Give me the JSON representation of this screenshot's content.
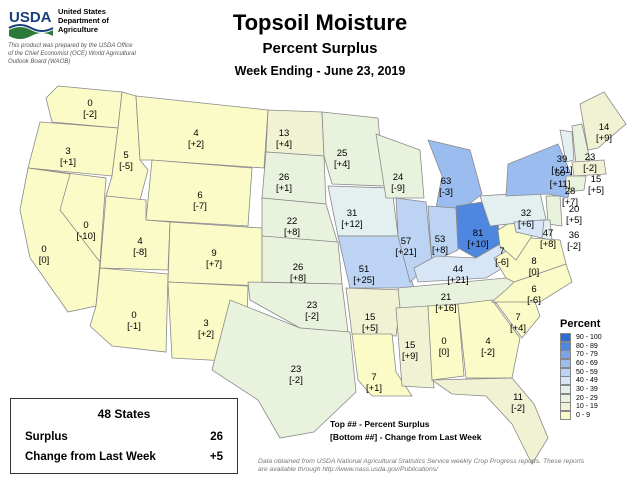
{
  "header": {
    "agency_logo_text": "USDA",
    "agency_name": [
      "United States",
      "Department of",
      "Agriculture"
    ],
    "disclaimer": "This product was prepared by the USDA Office of the Chief Economist (OCE) World Agricultural Outlook Board (WAOB)",
    "title": "Topsoil Moisture",
    "subtitle": "Percent Surplus",
    "week": "Week Ending - June 23, 2019"
  },
  "legend": {
    "title": "Percent",
    "items": [
      {
        "range": "90 - 100",
        "color": "#2b6fd6"
      },
      {
        "range": "80 - 89",
        "color": "#4f87e0"
      },
      {
        "range": "70 - 79",
        "color": "#7aa3e8"
      },
      {
        "range": "60 - 69",
        "color": "#9bbcee"
      },
      {
        "range": "50 - 59",
        "color": "#bcd3f3"
      },
      {
        "range": "40 - 49",
        "color": "#d7e6f7"
      },
      {
        "range": "30 - 39",
        "color": "#e4eff0"
      },
      {
        "range": "20 - 29",
        "color": "#e8f2dc"
      },
      {
        "range": "10 - 19",
        "color": "#f1f2d4"
      },
      {
        "range": "0 - 9",
        "color": "#fbfbc8"
      }
    ]
  },
  "summary": {
    "title": "48 States",
    "surplus_label": "Surplus",
    "surplus_value": "26",
    "change_label": "Change from Last Week",
    "change_value": "+5"
  },
  "key": {
    "top": "Top ## - Percent Surplus",
    "bottom": "[Bottom ##] - Change from Last Week"
  },
  "source": "Data obtained from USDA National Agricultural Statistics Service weekly Crop Progress reports. These reports are available through http://www.nass.usda.gov/Publications/",
  "states": [
    {
      "id": "WA",
      "value": "0",
      "change": "[-2]"
    },
    {
      "id": "OR",
      "value": "3",
      "change": "[+1]"
    },
    {
      "id": "ID",
      "value": "5",
      "change": "[-5]"
    },
    {
      "id": "MT",
      "value": "4",
      "change": "[+2]"
    },
    {
      "id": "WY",
      "value": "6",
      "change": "[-7]"
    },
    {
      "id": "NV",
      "value": "0",
      "change": "[-10]"
    },
    {
      "id": "CA",
      "value": "0",
      "change": "[0]"
    },
    {
      "id": "UT",
      "value": "4",
      "change": "[-8]"
    },
    {
      "id": "CO",
      "value": "9",
      "change": "[+7]"
    },
    {
      "id": "AZ",
      "value": "0",
      "change": "[-1]"
    },
    {
      "id": "NM",
      "value": "3",
      "change": "[+2]"
    },
    {
      "id": "ND",
      "value": "13",
      "change": "[+4]"
    },
    {
      "id": "SD",
      "value": "26",
      "change": "[+1]"
    },
    {
      "id": "NE",
      "value": "22",
      "change": "[+8]"
    },
    {
      "id": "KS",
      "value": "26",
      "change": "[+8]"
    },
    {
      "id": "OK",
      "value": "23",
      "change": "[-2]"
    },
    {
      "id": "TX",
      "value": "23",
      "change": "[-2]"
    },
    {
      "id": "MN",
      "value": "25",
      "change": "[+4]"
    },
    {
      "id": "IA",
      "value": "31",
      "change": "[+12]"
    },
    {
      "id": "MO",
      "value": "51",
      "change": "[+25]"
    },
    {
      "id": "AR",
      "value": "15",
      "change": "[+5]"
    },
    {
      "id": "LA",
      "value": "7",
      "change": "[+1]"
    },
    {
      "id": "WI",
      "value": "24",
      "change": "[-9]"
    },
    {
      "id": "IL",
      "value": "57",
      "change": "[+21]"
    },
    {
      "id": "MI",
      "value": "63",
      "change": "[-3]"
    },
    {
      "id": "IN",
      "value": "53",
      "change": "[+8]"
    },
    {
      "id": "OH",
      "value": "81",
      "change": "[+10]"
    },
    {
      "id": "KY",
      "value": "44",
      "change": "[+21]"
    },
    {
      "id": "TN",
      "value": "21",
      "change": "[+16]"
    },
    {
      "id": "MS",
      "value": "15",
      "change": "[+9]"
    },
    {
      "id": "AL",
      "value": "0",
      "change": "[0]"
    },
    {
      "id": "GA",
      "value": "4",
      "change": "[-2]"
    },
    {
      "id": "FL",
      "value": "11",
      "change": "[-2]"
    },
    {
      "id": "SC",
      "value": "7",
      "change": "[+4]"
    },
    {
      "id": "NC",
      "value": "6",
      "change": "[-6]"
    },
    {
      "id": "VA",
      "value": "8",
      "change": "[0]"
    },
    {
      "id": "WV",
      "value": "7",
      "change": "[-6]"
    },
    {
      "id": "PA",
      "value": "32",
      "change": "[+6]"
    },
    {
      "id": "NY",
      "value": "60",
      "change": "[+11]"
    },
    {
      "id": "VT",
      "value": "39",
      "change": "[+21]"
    },
    {
      "id": "NH",
      "value": "23",
      "change": "[-2]"
    },
    {
      "id": "ME",
      "value": "14",
      "change": "[+9]"
    },
    {
      "id": "MA",
      "value": "15",
      "change": "[+5]"
    },
    {
      "id": "CT",
      "value": "28",
      "change": "[+7]"
    },
    {
      "id": "NJ",
      "value": "20",
      "change": "[+5]"
    },
    {
      "id": "DE",
      "value": "36",
      "change": "[-2]"
    },
    {
      "id": "MD",
      "value": "47",
      "change": "[+8]"
    }
  ]
}
